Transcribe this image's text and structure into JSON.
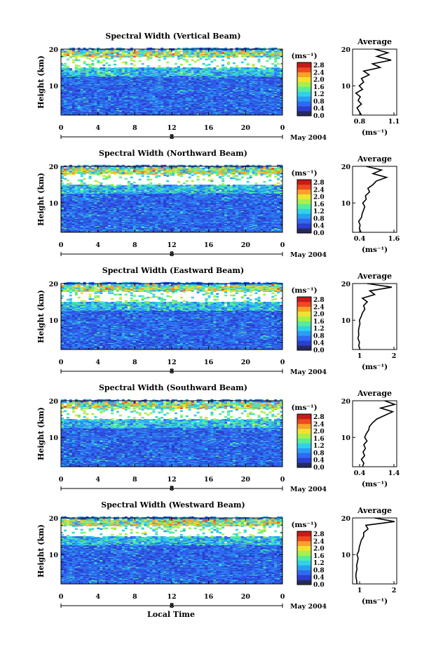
{
  "figure": {
    "xlabel": "Local Time",
    "date_label": "May 2004",
    "day_marker": "8",
    "colorbar_unit": "(ms⁻¹)",
    "colorbar_ticks": [
      "2.8",
      "2.4",
      "2.0",
      "1.6",
      "1.2",
      "0.8",
      "0.4",
      "0.0"
    ],
    "colorbar_colors": [
      "#262a5e",
      "#2b3fd2",
      "#2f6af0",
      "#2a9ef5",
      "#30d2e6",
      "#58ec9a",
      "#a8f04a",
      "#f0e232",
      "#f8a22a",
      "#ee4a22",
      "#c81a18"
    ],
    "average_title": "Average",
    "average_unit": "(ms⁻¹)"
  },
  "chart_data": [
    {
      "type": "heatmap",
      "title": "Spectral Width (Vertical Beam)",
      "ylabel": "Height (km)",
      "xlabel": "",
      "x_ticks": [
        "0",
        "4",
        "8",
        "12",
        "16",
        "20",
        "0"
      ],
      "y_ticks": [
        "20",
        "10"
      ],
      "xlim": [
        0,
        24
      ],
      "ylim": [
        2,
        20
      ],
      "colorbar_range": [
        0.0,
        3.0
      ],
      "average_profile": {
        "title": "Average",
        "xlabel": "(ms⁻¹)",
        "x_ticks": [
          "0.8",
          "1.1"
        ],
        "xlim": [
          0.7,
          1.1
        ],
        "ylim": [
          2,
          20
        ],
        "heights": [
          2,
          3,
          4,
          5,
          6,
          7,
          8,
          9,
          10,
          11,
          12,
          13,
          14,
          15,
          16,
          17,
          18,
          19,
          20
        ],
        "values": [
          0.78,
          0.76,
          0.74,
          0.78,
          0.75,
          0.77,
          0.73,
          0.79,
          0.76,
          0.8,
          0.78,
          0.85,
          0.8,
          0.95,
          0.88,
          1.05,
          0.92,
          1.02,
          0.9
        ]
      }
    },
    {
      "type": "heatmap",
      "title": "Spectral Width (Northward Beam)",
      "ylabel": "Height (km)",
      "xlabel": "",
      "x_ticks": [
        "0",
        "4",
        "8",
        "12",
        "16",
        "20",
        "0"
      ],
      "y_ticks": [
        "20",
        "10"
      ],
      "xlim": [
        0,
        24
      ],
      "ylim": [
        2,
        20
      ],
      "colorbar_range": [
        0.0,
        3.0
      ],
      "average_profile": {
        "title": "Average",
        "xlabel": "(ms⁻¹)",
        "x_ticks": [
          "0.4",
          "1.6"
        ],
        "xlim": [
          0.3,
          1.6
        ],
        "ylim": [
          2,
          20
        ],
        "heights": [
          2,
          3,
          4,
          5,
          6,
          7,
          8,
          9,
          10,
          11,
          12,
          13,
          14,
          15,
          16,
          17,
          18,
          19,
          20
        ],
        "values": [
          0.55,
          0.5,
          0.52,
          0.48,
          0.56,
          0.58,
          0.62,
          0.66,
          0.6,
          0.7,
          0.68,
          0.8,
          0.75,
          0.9,
          1.0,
          1.3,
          0.9,
          1.15,
          0.7
        ]
      }
    },
    {
      "type": "heatmap",
      "title": "Spectral Width (Eastward Beam)",
      "ylabel": "Height (km)",
      "xlabel": "",
      "x_ticks": [
        "0",
        "4",
        "8",
        "12",
        "16",
        "20",
        "0"
      ],
      "y_ticks": [
        "20",
        "10"
      ],
      "xlim": [
        0,
        24
      ],
      "ylim": [
        2,
        20
      ],
      "colorbar_range": [
        0.0,
        3.0
      ],
      "average_profile": {
        "title": "Average",
        "xlabel": "(ms⁻¹)",
        "x_ticks": [
          "1",
          "2"
        ],
        "xlim": [
          0.5,
          2.3
        ],
        "ylim": [
          2,
          20
        ],
        "heights": [
          2,
          3,
          4,
          5,
          6,
          7,
          8,
          9,
          10,
          11,
          12,
          13,
          14,
          15,
          16,
          17,
          18,
          19,
          20
        ],
        "values": [
          0.8,
          0.75,
          0.78,
          0.72,
          0.75,
          0.74,
          0.76,
          0.8,
          0.78,
          0.85,
          0.9,
          1.0,
          0.95,
          1.1,
          0.9,
          1.4,
          1.2,
          2.1,
          1.1
        ]
      }
    },
    {
      "type": "heatmap",
      "title": "Spectral Width (Southward Beam)",
      "ylabel": "Height (km)",
      "xlabel": "",
      "x_ticks": [
        "0",
        "4",
        "8",
        "12",
        "16",
        "20",
        "0"
      ],
      "y_ticks": [
        "20",
        "10"
      ],
      "xlim": [
        0,
        24
      ],
      "ylim": [
        2,
        20
      ],
      "colorbar_range": [
        0.0,
        3.0
      ],
      "average_profile": {
        "title": "Average",
        "xlabel": "(ms⁻¹)",
        "x_ticks": [
          "0.4",
          "1.4"
        ],
        "xlim": [
          0.3,
          1.4
        ],
        "ylim": [
          2,
          20
        ],
        "heights": [
          2,
          3,
          4,
          5,
          6,
          7,
          8,
          9,
          10,
          11,
          12,
          13,
          14,
          15,
          16,
          17,
          18,
          19,
          20
        ],
        "values": [
          0.55,
          0.58,
          0.52,
          0.6,
          0.56,
          0.62,
          0.58,
          0.66,
          0.6,
          0.64,
          0.7,
          0.72,
          0.8,
          0.9,
          1.1,
          1.3,
          1.0,
          1.35,
          1.1
        ]
      }
    },
    {
      "type": "heatmap",
      "title": "Spectral Width (Westward Beam)",
      "ylabel": "Height (km)",
      "xlabel": "Local Time",
      "x_ticks": [
        "0",
        "4",
        "8",
        "12",
        "16",
        "20",
        "0"
      ],
      "y_ticks": [
        "20",
        "10"
      ],
      "xlim": [
        0,
        24
      ],
      "ylim": [
        2,
        20
      ],
      "colorbar_range": [
        0.0,
        3.0
      ],
      "average_profile": {
        "title": "Average",
        "xlabel": "(ms⁻¹)",
        "x_ticks": [
          "1",
          "2"
        ],
        "xlim": [
          0.5,
          2.5
        ],
        "ylim": [
          2,
          20
        ],
        "heights": [
          2,
          3,
          4,
          5,
          6,
          7,
          8,
          9,
          10,
          11,
          12,
          13,
          14,
          15,
          16,
          17,
          18,
          19,
          20
        ],
        "values": [
          0.7,
          0.68,
          0.65,
          0.66,
          0.7,
          0.68,
          0.72,
          0.75,
          0.7,
          0.78,
          0.8,
          0.85,
          0.9,
          1.0,
          1.0,
          1.2,
          1.1,
          2.4,
          1.5
        ]
      }
    }
  ]
}
